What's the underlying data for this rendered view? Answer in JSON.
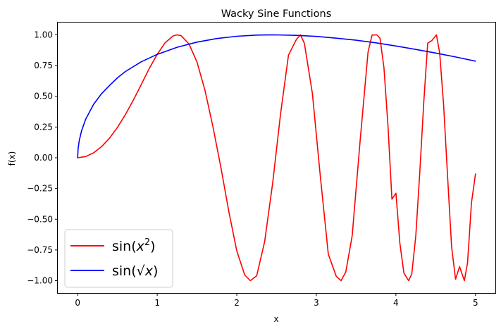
{
  "chart_data": {
    "type": "line",
    "title": "Wacky Sine Functions",
    "xlabel": "x",
    "ylabel": "f(x)",
    "xlim": [
      -0.25,
      5.25
    ],
    "ylim": [
      -1.1,
      1.1
    ],
    "xticks": [
      0,
      1,
      2,
      3,
      4,
      5
    ],
    "xtick_labels": [
      "0",
      "1",
      "2",
      "3",
      "4",
      "5"
    ],
    "yticks": [
      1.0,
      0.75,
      0.5,
      0.25,
      0.0,
      -0.25,
      -0.5,
      -0.75,
      -1.0
    ],
    "ytick_labels": [
      "1.00",
      "0.75",
      "0.50",
      "0.25",
      "0.00",
      "−0.25",
      "−0.50",
      "−0.75",
      "−1.00"
    ],
    "grid": false,
    "legend_position": "lower-left",
    "series": [
      {
        "name": "sin(x²)",
        "legend_base": "sin(",
        "legend_var": "x",
        "legend_sup": "2",
        "legend_close": ")",
        "color": "#ff0000",
        "x": [
          0,
          0.1,
          0.2,
          0.3,
          0.4,
          0.5,
          0.6,
          0.7,
          0.8,
          0.9,
          1.0,
          1.1,
          1.2,
          1.25,
          1.3,
          1.4,
          1.5,
          1.6,
          1.7,
          1.8,
          1.9,
          2.0,
          2.1,
          2.17,
          2.25,
          2.35,
          2.45,
          2.55,
          2.65,
          2.75,
          2.8,
          2.85,
          2.95,
          3.05,
          3.15,
          3.25,
          3.31,
          3.37,
          3.45,
          3.55,
          3.65,
          3.7,
          3.76,
          3.8,
          3.85,
          3.9,
          3.95,
          4.0,
          4.05,
          4.1,
          4.16,
          4.2,
          4.25,
          4.3,
          4.35,
          4.4,
          4.45,
          4.51,
          4.55,
          4.6,
          4.65,
          4.7,
          4.75,
          4.8,
          4.86,
          4.9,
          4.95,
          5.0
        ],
        "y": [
          0.0,
          0.01,
          0.04,
          0.09,
          0.159,
          0.247,
          0.352,
          0.47,
          0.597,
          0.726,
          0.841,
          0.936,
          0.991,
          1.0,
          0.993,
          0.925,
          0.778,
          0.549,
          0.252,
          -0.079,
          -0.439,
          -0.757,
          -0.954,
          -1.0,
          -0.96,
          -0.681,
          -0.209,
          0.354,
          0.835,
          0.963,
          1.0,
          0.93,
          0.524,
          -0.151,
          -0.784,
          -0.964,
          -1.0,
          -0.93,
          -0.635,
          0.14,
          0.859,
          0.998,
          1.0,
          0.972,
          0.732,
          0.261,
          -0.337,
          -0.288,
          -0.696,
          -0.938,
          -1.0,
          -0.944,
          -0.634,
          -0.123,
          0.451,
          0.932,
          0.953,
          1.0,
          0.852,
          0.425,
          -0.162,
          -0.724,
          -0.988,
          -0.886,
          -1.0,
          -0.856,
          -0.366,
          -0.132
        ]
      },
      {
        "name": "sin(√x)",
        "legend_base": "sin(",
        "legend_var": "√x",
        "legend_sup": "",
        "legend_close": ")",
        "color": "#0000ff",
        "x": [
          0,
          0.005,
          0.02,
          0.05,
          0.1,
          0.2,
          0.3,
          0.4,
          0.5,
          0.6,
          0.8,
          1.0,
          1.25,
          1.5,
          1.75,
          2.0,
          2.25,
          2.47,
          2.75,
          3.0,
          3.25,
          3.5,
          3.75,
          4.0,
          4.25,
          4.5,
          4.75,
          5.0
        ],
        "y": [
          0.0,
          0.071,
          0.141,
          0.222,
          0.312,
          0.435,
          0.521,
          0.588,
          0.65,
          0.702,
          0.781,
          0.841,
          0.899,
          0.941,
          0.97,
          0.988,
          0.998,
          1.0,
          0.996,
          0.987,
          0.973,
          0.956,
          0.935,
          0.909,
          0.881,
          0.852,
          0.82,
          0.786
        ]
      }
    ]
  }
}
